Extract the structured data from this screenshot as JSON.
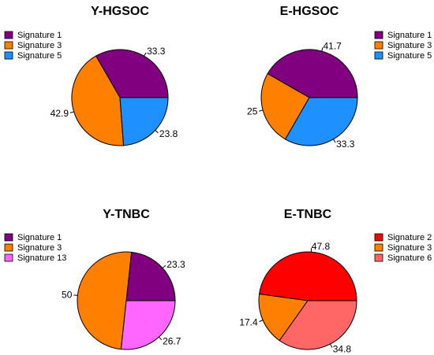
{
  "chart_data": [
    {
      "type": "pie",
      "title": "Y-HGSOC",
      "categories": [
        "Signature 1",
        "Signature 3",
        "Signature 5"
      ],
      "values": [
        33.3,
        42.9,
        23.8
      ],
      "colors": [
        "#800080",
        "#ff8000",
        "#1e90ff"
      ],
      "legend": "top-left"
    },
    {
      "type": "pie",
      "title": "E-HGSOC",
      "categories": [
        "Signature 1",
        "Signature 3",
        "Signature 5"
      ],
      "values": [
        41.7,
        25,
        33.3
      ],
      "colors": [
        "#800080",
        "#ff8000",
        "#1e90ff"
      ],
      "legend": "top-right"
    },
    {
      "type": "pie",
      "title": "Y-TNBC",
      "categories": [
        "Signature 1",
        "Signature 3",
        "Signature 13"
      ],
      "values": [
        23.3,
        50,
        26.7
      ],
      "colors": [
        "#800080",
        "#ff8000",
        "#ff66ff"
      ],
      "legend": "top-left"
    },
    {
      "type": "pie",
      "title": "E-TNBC",
      "categories": [
        "Signature 2",
        "Signature 3",
        "Signature 6"
      ],
      "values": [
        47.8,
        17.4,
        34.8
      ],
      "colors": [
        "#ff0000",
        "#ff8000",
        "#ff6666"
      ],
      "legend": "top-right"
    }
  ]
}
